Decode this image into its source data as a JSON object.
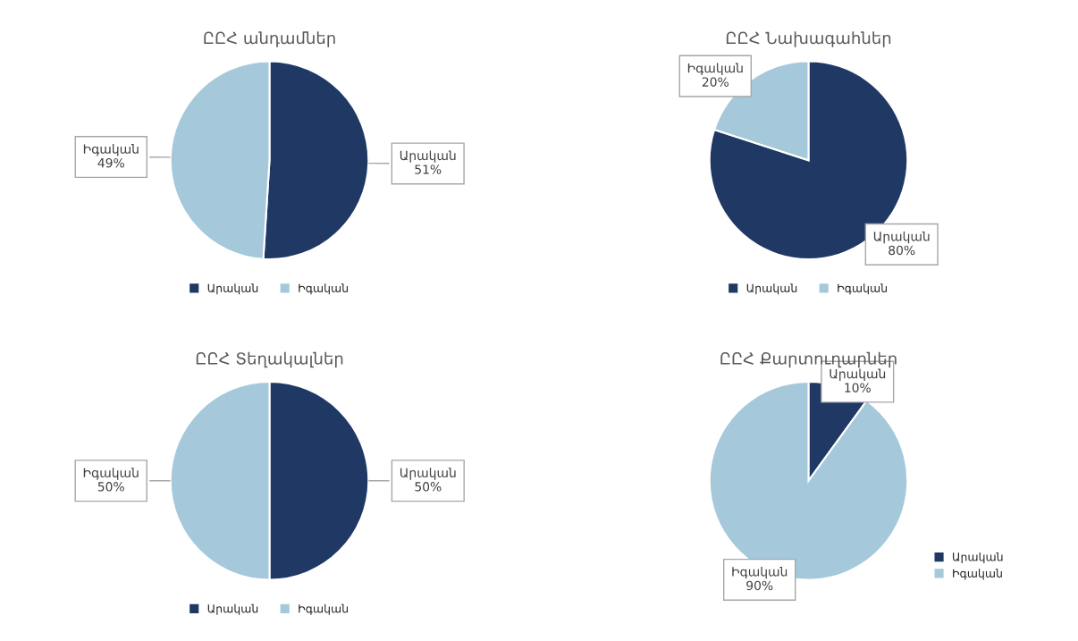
{
  "chart_data": [
    {
      "type": "pie",
      "title": "ԸԸՀ անդամներ",
      "categories": [
        "Արական",
        "Իգական"
      ],
      "values": [
        51,
        49
      ],
      "colors": [
        "#1f3864",
        "#a5c9da"
      ],
      "value_labels": [
        "51%",
        "49%"
      ],
      "legend": "bottom"
    },
    {
      "type": "pie",
      "title": "ԸԸՀ Նախագահներ",
      "categories": [
        "Արական",
        "Իգական"
      ],
      "values": [
        80,
        20
      ],
      "colors": [
        "#1f3864",
        "#a5c9da"
      ],
      "value_labels": [
        "80%",
        "20%"
      ],
      "legend": "bottom"
    },
    {
      "type": "pie",
      "title": "ԸԸՀ Տեղակալներ",
      "categories": [
        "Արական",
        "Իգական"
      ],
      "values": [
        50,
        50
      ],
      "colors": [
        "#1f3864",
        "#a5c9da"
      ],
      "value_labels": [
        "50%",
        "50%"
      ],
      "legend": "bottom"
    },
    {
      "type": "pie",
      "title": "ԸԸՀ Քարտուղարներ",
      "categories": [
        "Արական",
        "Իգական"
      ],
      "values": [
        10,
        90
      ],
      "colors": [
        "#1f3864",
        "#a5c9da"
      ],
      "value_labels": [
        "10%",
        "90%"
      ],
      "legend": "bottom right"
    }
  ]
}
